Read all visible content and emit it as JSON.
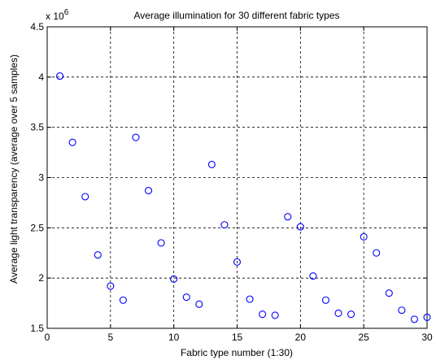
{
  "chart_data": {
    "type": "scatter",
    "title": "Average illumination for 30 different fabric types",
    "xlabel": "Fabric type number (1:30)",
    "ylabel": "Average light transparency (average over 5 samples)",
    "y_multiplier_base": "x 10",
    "y_multiplier_exp": "6",
    "xlim": [
      0,
      30
    ],
    "ylim": [
      1.5,
      4.5
    ],
    "x_ticks": [
      0,
      5,
      10,
      15,
      20,
      25,
      30
    ],
    "x_tick_labels": [
      "0",
      "5",
      "10",
      "15",
      "20",
      "25",
      "30"
    ],
    "y_ticks": [
      1.5,
      2,
      2.5,
      3,
      3.5,
      4,
      4.5
    ],
    "y_tick_labels": [
      "1.5",
      "2",
      "2.5",
      "3",
      "3.5",
      "4",
      "4.5"
    ],
    "grid": true,
    "marker": "circle",
    "color": "#0000ff",
    "x": [
      1,
      2,
      3,
      4,
      5,
      6,
      7,
      8,
      9,
      10,
      11,
      12,
      13,
      14,
      15,
      16,
      17,
      18,
      19,
      20,
      21,
      22,
      23,
      24,
      25,
      26,
      27,
      28,
      29,
      30
    ],
    "y": [
      4.01,
      3.35,
      2.81,
      2.23,
      1.92,
      1.78,
      3.4,
      2.87,
      2.35,
      1.99,
      1.81,
      1.74,
      3.13,
      2.53,
      2.16,
      1.79,
      1.64,
      1.63,
      2.61,
      2.51,
      2.02,
      1.78,
      1.65,
      1.64,
      2.41,
      2.25,
      1.85,
      1.68,
      1.59,
      1.61
    ]
  }
}
